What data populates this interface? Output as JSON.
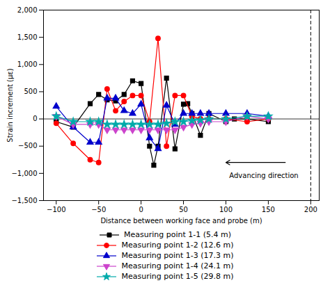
{
  "chart_data": {
    "type": "line",
    "xlabel": "Distance between working face and probe (m)",
    "ylabel": "Strain increment (με)",
    "xlim": [
      -115,
      210
    ],
    "ylim": [
      -1500,
      2000
    ],
    "xticks": [
      -100,
      -50,
      0,
      50,
      100,
      150,
      200
    ],
    "yticks": [
      -1500,
      -1000,
      -500,
      0,
      500,
      1000,
      1500,
      2000
    ],
    "grid": false,
    "legend": "bottom",
    "series": [
      {
        "name": "Measuring point 1-1 (5.4 m)",
        "color": "#000000",
        "marker": "square",
        "x": [
          -100,
          -80,
          -60,
          -50,
          -40,
          -30,
          -20,
          -10,
          0,
          10,
          15,
          20,
          30,
          40,
          50,
          55,
          60,
          70,
          80,
          100,
          110,
          125,
          150
        ],
        "values": [
          -50,
          -150,
          280,
          450,
          350,
          330,
          450,
          700,
          650,
          -500,
          -850,
          -500,
          750,
          -550,
          270,
          280,
          100,
          -300,
          100,
          -50,
          0,
          0,
          -50
        ]
      },
      {
        "name": "Measuring point 1-2 (12.6 m)",
        "color": "#ff0000",
        "marker": "circle",
        "x": [
          -100,
          -80,
          -60,
          -50,
          -40,
          -30,
          -20,
          -10,
          0,
          10,
          20,
          30,
          40,
          50,
          60,
          70,
          80,
          100,
          125,
          150
        ],
        "values": [
          -80,
          -450,
          -750,
          -800,
          550,
          150,
          320,
          430,
          430,
          -50,
          1480,
          -500,
          430,
          430,
          50,
          0,
          0,
          0,
          -50,
          0
        ]
      },
      {
        "name": "Measuring point 1-3 (17.3 m)",
        "color": "#0000cc",
        "marker": "triangle-up",
        "x": [
          -100,
          -80,
          -60,
          -50,
          -40,
          -30,
          -20,
          -10,
          0,
          10,
          20,
          30,
          40,
          50,
          60,
          70,
          80,
          100,
          125,
          150
        ],
        "values": [
          230,
          -150,
          -430,
          -430,
          380,
          380,
          150,
          100,
          270,
          -350,
          -550,
          250,
          -100,
          100,
          100,
          100,
          100,
          100,
          100,
          50
        ]
      },
      {
        "name": "Measuring point 1-4 (24.1 m)",
        "color": "#cc44cc",
        "marker": "triangle-down",
        "x": [
          -100,
          -80,
          -60,
          -50,
          -40,
          -30,
          -20,
          -10,
          0,
          10,
          20,
          30,
          40,
          50,
          60,
          70,
          80,
          100,
          125,
          150
        ],
        "values": [
          50,
          -100,
          -100,
          -100,
          -200,
          -200,
          -200,
          -200,
          -200,
          -200,
          -200,
          -200,
          -200,
          -150,
          -100,
          -80,
          -50,
          -50,
          50,
          0
        ]
      },
      {
        "name": "Measuring point 1-5 (29.8 m)",
        "color": "#00aaaa",
        "marker": "star",
        "x": [
          -100,
          -80,
          -60,
          -50,
          -40,
          -30,
          -20,
          -10,
          0,
          10,
          20,
          30,
          40,
          50,
          60,
          70,
          80,
          100,
          125,
          150
        ],
        "values": [
          50,
          -50,
          -50,
          -50,
          -100,
          -100,
          -100,
          -100,
          -100,
          -100,
          -100,
          -80,
          -50,
          -50,
          -30,
          -20,
          0,
          0,
          50,
          50
        ]
      }
    ],
    "hlines": [
      {
        "y": 0,
        "line_style": "solid"
      }
    ],
    "vlines": [
      {
        "x": 200,
        "line_style": "dashed"
      }
    ],
    "arrows": [
      {
        "x_start": 170,
        "x_end": 100,
        "y": -800
      }
    ],
    "annotations": [
      {
        "text": "Advancing direction",
        "x": 104,
        "y": -1000
      }
    ]
  }
}
